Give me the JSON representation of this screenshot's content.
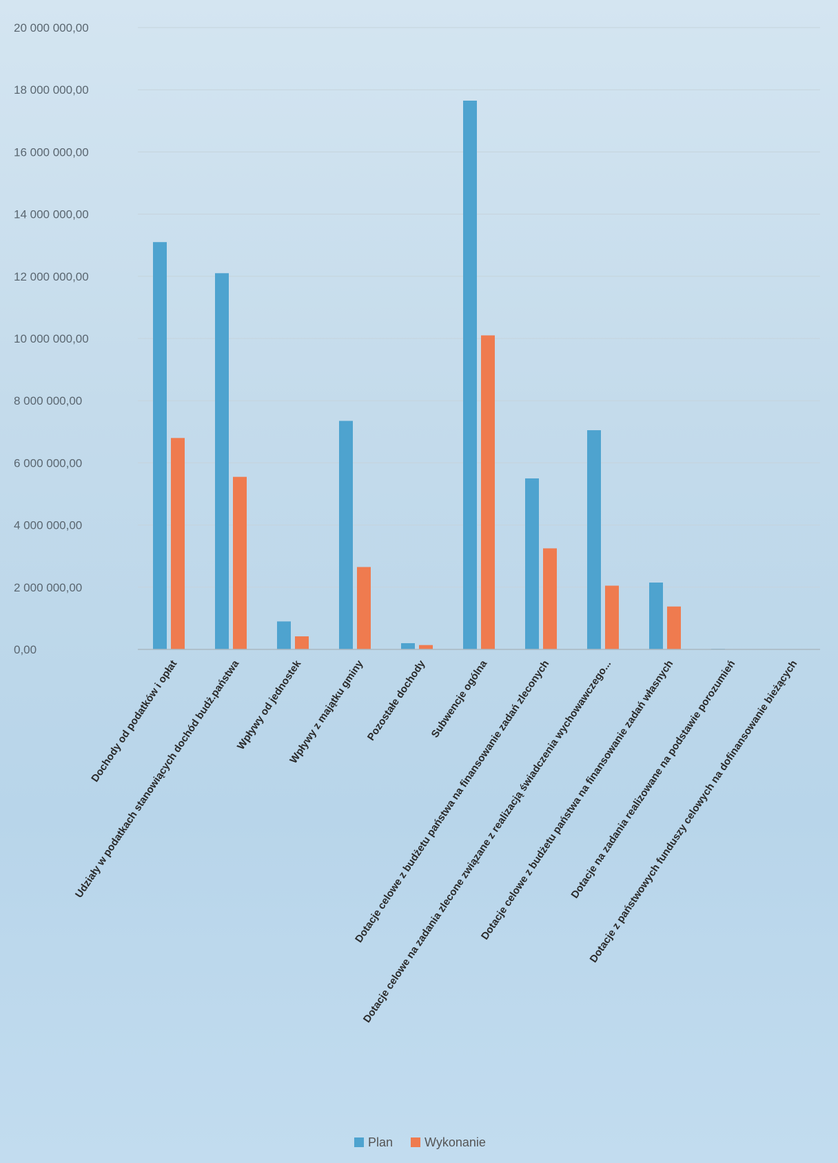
{
  "chart_data": {
    "type": "bar",
    "categories": [
      "Dochody od podatków i opłat",
      "Udziały w podatkach stanowiących dochód budż.państwa",
      "Wpływy od jednostek",
      "Wpływy z majątku gminy",
      "Pozostałe dochody",
      "Subwencje ogólna",
      "Dotacje celowe z budżetu państwa na finansowanie  zadań zleconych",
      "Dotacje celowe na zadania zlecone związane z realizacją świadczenia wychowawczego...",
      "Dotacje celowe z budżetu państwa na finansowanie  zadań własnych",
      "Dotacje na zadania realizowane na podstawie porozumień",
      "Dotacje z państwowych funduszy celowych na dofinansowanie bieżących"
    ],
    "series": [
      {
        "name": "Plan",
        "color": "#4ea3cf",
        "values": [
          13100000,
          12100000,
          900000,
          7350000,
          200000,
          17650000,
          5500000,
          7050000,
          2150000,
          20000,
          0
        ]
      },
      {
        "name": "Wykonanie",
        "color": "#ef7b4f",
        "values": [
          6800000,
          5550000,
          420000,
          2650000,
          140000,
          10100000,
          3250000,
          2050000,
          1380000,
          0,
          0
        ]
      }
    ],
    "y_ticks": [
      "0,00",
      "2 000 000,00",
      "4 000 000,00",
      "6 000 000,00",
      "8 000 000,00",
      "10 000 000,00",
      "12 000 000,00",
      "14 000 000,00",
      "16 000 000,00",
      "18 000 000,00",
      "20 000 000,00"
    ],
    "ylim": [
      0,
      20000000
    ],
    "legend_position": "bottom",
    "grid": true
  },
  "legend": {
    "plan_label": "Plan",
    "wykonanie_label": "Wykonanie"
  }
}
